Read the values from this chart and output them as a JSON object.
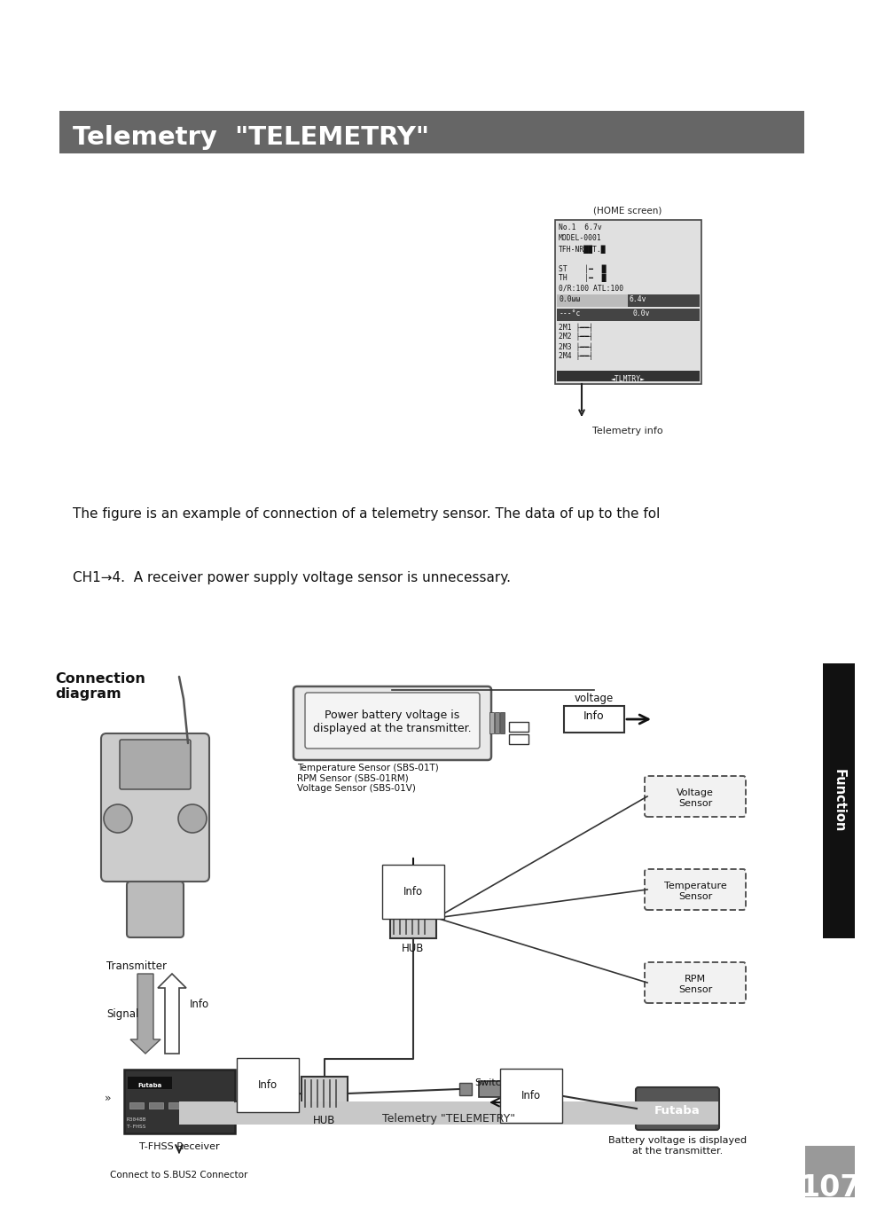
{
  "title_text": "Telemetry  \"TELEMETRY\"",
  "title_bg_color": "#666666",
  "title_text_color": "#ffffff",
  "body_bg_color": "#ffffff",
  "paragraph1": "The figure is an example of connection of a telemetry sensor. The data of up to the fol",
  "paragraph2": "CH1→4.  A receiver power supply voltage sensor is unnecessary.",
  "connection_diagram_label": "Connection\ndiagram",
  "transmitter_label": "Transmitter",
  "signal_label": "Signal",
  "hub_label1": "HUB",
  "hub_label2": "HUB",
  "switch_label": "Switch",
  "voltage_label": "voltage",
  "info_box_text": "Power battery voltage is\ndisplayed at the transmitter.",
  "sensor_labels_top": "Temperature Sensor (SBS-01T)\nRPM Sensor (SBS-01RM)\nVoltage Sensor (SBS-01V)",
  "voltage_sensor_label": "Voltage\nSensor",
  "temperature_sensor_label": "Temperature\nSensor",
  "rpm_sensor_label": "RPM\nSensor",
  "futaba_label": "Futaba",
  "battery_text": "Battery voltage is displayed\nat the transmitter.",
  "receiver_label": "T-FHSS Receiver",
  "connect_label": "Connect to S.BUS2 Connector",
  "footer_text": "Telemetry \"TELEMETRY\"",
  "footer_bg": "#c8c8c8",
  "page_number": "107",
  "page_tab_bg": "#999999",
  "function_tab_text": "Function",
  "function_tab_bg": "#111111",
  "home_screen_label": "(HOME screen)",
  "telemetry_info_label": "Telemetry info"
}
